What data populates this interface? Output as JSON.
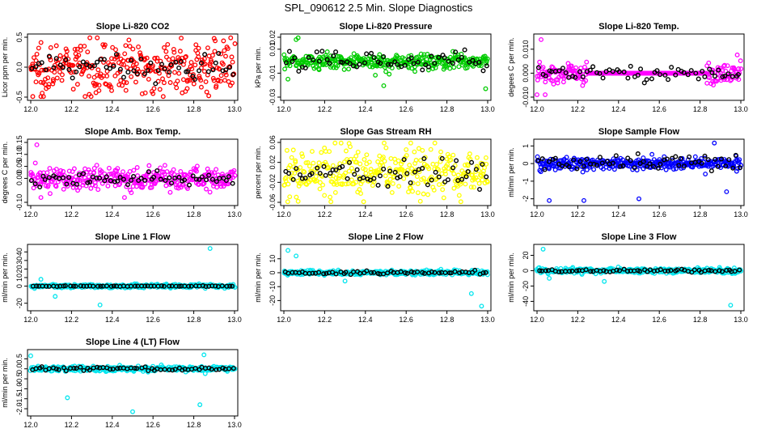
{
  "figure_title": "SPL_090612  2.5 Min. Slope Diagnostics",
  "chart_data": [
    {
      "type": "scatter",
      "title": "Slope Li-820 CO2",
      "ylabel": "Licor ppm per min.",
      "color": "#ff0000",
      "xlim": [
        12.0,
        13.0
      ],
      "ylim": [
        -0.5,
        0.5
      ],
      "yticks": [
        "-0.5",
        "0.0",
        "0.5"
      ],
      "ytick_values": [
        -0.5,
        0.0,
        0.5
      ],
      "xticks": [
        "12.0",
        "12.2",
        "12.4",
        "12.6",
        "12.8",
        "13.0"
      ],
      "spread": 0.38,
      "outliers": [
        [
          12.9,
          0.48
        ],
        [
          12.01,
          -0.55
        ],
        [
          12.05,
          -0.5
        ]
      ],
      "black_spread": 0.2
    },
    {
      "type": "scatter",
      "title": "Slope Li-820 Pressure",
      "ylabel": "kPa per min.",
      "color": "#00cc00",
      "xlim": [
        12.0,
        13.0
      ],
      "ylim": [
        -0.03,
        0.02
      ],
      "yticks": [
        "-0.03",
        "-0.01",
        "0.01",
        "0.02"
      ],
      "ytick_values": [
        -0.03,
        -0.01,
        0.01,
        0.02
      ],
      "xticks": [
        "12.0",
        "12.2",
        "12.4",
        "12.6",
        "12.8",
        "13.0"
      ],
      "spread": 0.006,
      "outliers": [
        [
          12.49,
          -0.0205
        ],
        [
          12.99,
          -0.023
        ],
        [
          12.07,
          0.02
        ],
        [
          12.02,
          -0.015
        ],
        [
          12.06,
          0.018
        ]
      ],
      "black_spread": 0.008
    },
    {
      "type": "scatter",
      "title": "Slope Li-820 Temp.",
      "ylabel": "degees C per min.",
      "color": "#ff00ff",
      "xlim": [
        12.0,
        13.0
      ],
      "ylim": [
        -0.01,
        0.015
      ],
      "yticks": [
        "-0.010",
        "0.000",
        "0.010"
      ],
      "ytick_values": [
        -0.01,
        0.0,
        0.01
      ],
      "xticks": [
        "12.0",
        "12.2",
        "12.4",
        "12.6",
        "12.8",
        "13.0"
      ],
      "spread": 0.004,
      "outliers": [
        [
          12.0,
          -0.009
        ],
        [
          12.04,
          -0.009
        ],
        [
          12.02,
          0.014
        ]
      ],
      "black_spread": 0.003,
      "flat_ranges": [
        [
          12.25,
          12.83
        ]
      ]
    },
    {
      "type": "scatter",
      "title": "Slope Amb. Box Temp.",
      "ylabel": "degrees C per min.",
      "color": "#ff00ff",
      "xlim": [
        12.0,
        13.0
      ],
      "ylim": [
        -0.1,
        0.15
      ],
      "yticks": [
        "-0.10",
        "0.00",
        "0.05",
        "0.10",
        "0.15"
      ],
      "ytick_values": [
        -0.1,
        0.0,
        0.05,
        0.1,
        0.15
      ],
      "xticks": [
        "12.0",
        "12.2",
        "12.4",
        "12.6",
        "12.8",
        "13.0"
      ],
      "spread": 0.045,
      "outliers": [
        [
          12.03,
          0.14
        ],
        [
          12.05,
          -0.08
        ],
        [
          12.46,
          -0.08
        ]
      ],
      "black_spread": 0.03
    },
    {
      "type": "scatter",
      "title": "Slope Gas Stream RH",
      "ylabel": "percent per min.",
      "color": "#ffff00",
      "xlim": [
        12.0,
        13.0
      ],
      "ylim": [
        -0.06,
        0.06
      ],
      "yticks": [
        "-0.06",
        "-0.02",
        "0.02",
        "0.06"
      ],
      "ytick_values": [
        -0.06,
        -0.02,
        0.02,
        0.06
      ],
      "xticks": [
        "12.0",
        "12.2",
        "12.4",
        "12.6",
        "12.8",
        "13.0"
      ],
      "spread": 0.04,
      "outliers": [
        [
          12.07,
          -0.058
        ],
        [
          12.32,
          0.058
        ]
      ],
      "black_spread": 0.03
    },
    {
      "type": "scatter",
      "title": "Slope Sample Flow",
      "ylabel": "ml/min per min.",
      "color": "#0000ff",
      "xlim": [
        12.0,
        13.0
      ],
      "ylim": [
        -2.2,
        1.2
      ],
      "yticks": [
        "-2",
        "-1",
        "0",
        "1"
      ],
      "ytick_values": [
        -2,
        -1,
        0,
        1
      ],
      "xticks": [
        "12.0",
        "12.2",
        "12.4",
        "12.6",
        "12.8",
        "13.0"
      ],
      "spread": 0.3,
      "outliers": [
        [
          12.06,
          -2.1
        ],
        [
          12.23,
          -2.1
        ],
        [
          12.5,
          -2.0
        ],
        [
          12.87,
          1.2
        ],
        [
          12.93,
          -1.6
        ]
      ],
      "black_spread": 0.5
    },
    {
      "type": "scatter",
      "title": "Slope Line 1 Flow",
      "ylabel": "ml/min per min.",
      "color": "#00e5ee",
      "xlim": [
        12.0,
        13.0
      ],
      "ylim": [
        -25,
        45
      ],
      "yticks": [
        "-20",
        "0",
        "10",
        "20",
        "30",
        "40"
      ],
      "ytick_values": [
        -20,
        0,
        10,
        20,
        30,
        40
      ],
      "xticks": [
        "12.0",
        "12.2",
        "12.4",
        "12.6",
        "12.8",
        "13.0"
      ],
      "spread": 2.0,
      "outliers": [
        [
          12.88,
          44
        ],
        [
          12.34,
          -22
        ],
        [
          12.12,
          -12
        ],
        [
          12.05,
          8
        ]
      ],
      "black_spread": 0.4
    },
    {
      "type": "scatter",
      "title": "Slope Line 2 Flow",
      "ylabel": "ml/min per min.",
      "color": "#00e5ee",
      "xlim": [
        12.0,
        13.0
      ],
      "ylim": [
        -25,
        18
      ],
      "yticks": [
        "-20",
        "-10",
        "0",
        "10"
      ],
      "ytick_values": [
        -20,
        -10,
        0,
        10
      ],
      "xticks": [
        "12.0",
        "12.2",
        "12.4",
        "12.6",
        "12.8",
        "13.0"
      ],
      "spread": 1.5,
      "outliers": [
        [
          12.02,
          16
        ],
        [
          12.97,
          -24
        ],
        [
          12.92,
          -15
        ],
        [
          12.06,
          12
        ],
        [
          12.3,
          -6
        ]
      ],
      "black_spread": 1.2
    },
    {
      "type": "scatter",
      "title": "Slope Line 3 Flow",
      "ylabel": "ml/min per min.",
      "color": "#00e5ee",
      "xlim": [
        12.0,
        13.0
      ],
      "ylim": [
        -48,
        30
      ],
      "yticks": [
        "-40",
        "-20",
        "0",
        "20"
      ],
      "ytick_values": [
        -40,
        -20,
        0,
        20
      ],
      "xticks": [
        "12.0",
        "12.2",
        "12.4",
        "12.6",
        "12.8",
        "13.0"
      ],
      "spread": 3.0,
      "outliers": [
        [
          12.03,
          28
        ],
        [
          12.95,
          -45
        ],
        [
          12.33,
          -14
        ],
        [
          12.06,
          -10
        ]
      ],
      "black_spread": 2.0
    },
    {
      "type": "scatter",
      "title": "Slope Line 4 (LT) Flow",
      "ylabel": "ml/min per min.",
      "color": "#00e5ee",
      "xlim": [
        12.0,
        13.0
      ],
      "ylim": [
        -2.2,
        0.8
      ],
      "yticks": [
        "-2.0",
        "-1.5",
        "-1.0",
        "-0.5",
        "0.0",
        "0.5"
      ],
      "ytick_values": [
        -2.0,
        -1.5,
        -1.0,
        -0.5,
        0.0,
        0.5
      ],
      "xticks": [
        "12.0",
        "12.2",
        "12.4",
        "12.6",
        "12.8",
        "13.0"
      ],
      "spread": 0.12,
      "outliers": [
        [
          12.18,
          -1.45
        ],
        [
          12.5,
          -2.15
        ],
        [
          12.83,
          -1.8
        ],
        [
          12.85,
          0.7
        ],
        [
          12.0,
          0.65
        ]
      ],
      "black_spread": 0.08
    }
  ]
}
